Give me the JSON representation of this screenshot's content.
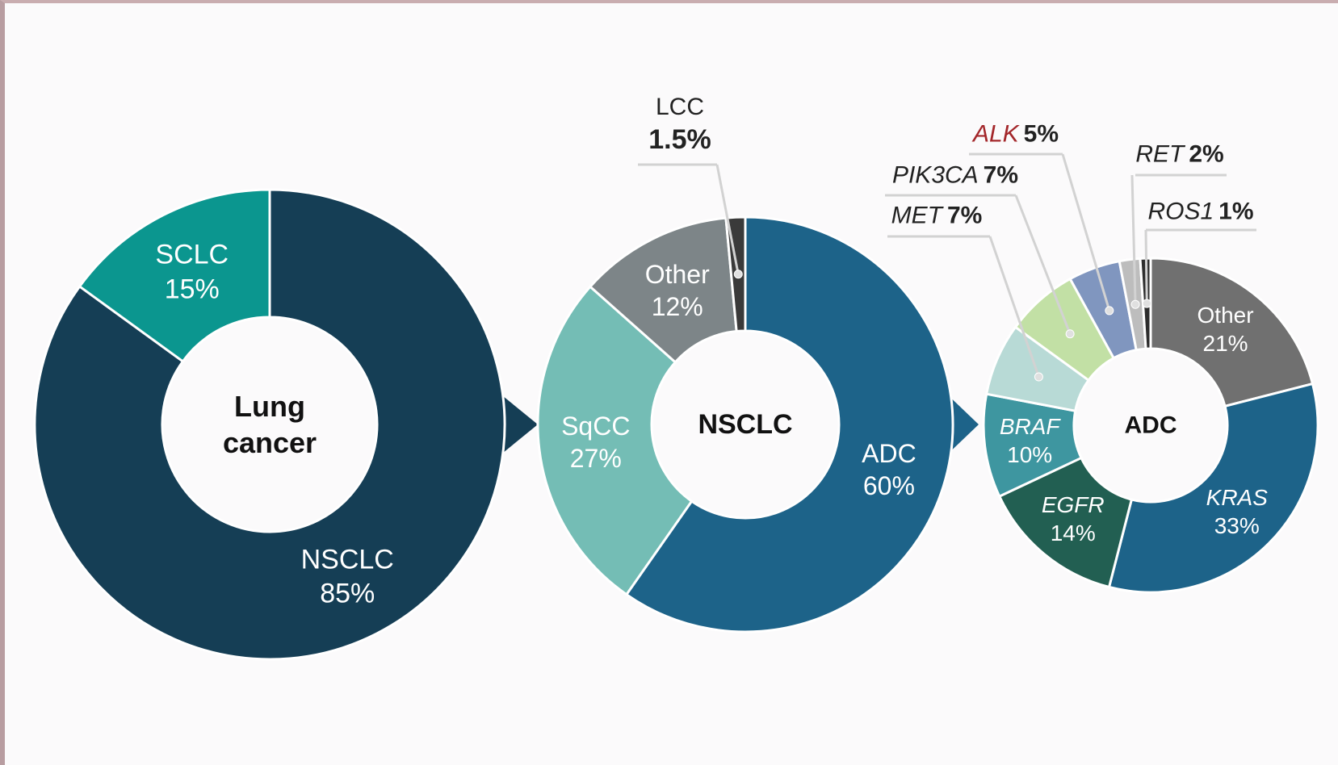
{
  "chart_data": [
    {
      "type": "pie",
      "title": "Lung cancer",
      "categories": [
        "NSCLC",
        "SCLC"
      ],
      "values": [
        85,
        15
      ],
      "value_labels": [
        "85%",
        "15%"
      ],
      "colors": [
        "#153e55",
        "#0b968f"
      ],
      "italic": [
        false,
        false
      ]
    },
    {
      "type": "pie",
      "title": "NSCLC",
      "categories": [
        "ADC",
        "SqCC",
        "Other",
        "LCC"
      ],
      "values": [
        60,
        27,
        12,
        1.5
      ],
      "value_labels": [
        "60%",
        "27%",
        "12%",
        "1.5%"
      ],
      "colors": [
        "#1d6389",
        "#74bdb5",
        "#7d8588",
        "#3a3a3a"
      ],
      "italic": [
        false,
        false,
        false,
        false
      ]
    },
    {
      "type": "pie",
      "title": "ADC",
      "categories": [
        "Other",
        "KRAS",
        "EGFR",
        "BRAF",
        "MET",
        "PIK3CA",
        "ALK",
        "RET",
        "ROS1"
      ],
      "values": [
        21,
        33,
        14,
        10,
        7,
        7,
        5,
        2,
        1
      ],
      "value_labels": [
        "21%",
        "33%",
        "14%",
        "10%",
        "7%",
        "7%",
        "5%",
        "2%",
        "1%"
      ],
      "colors": [
        "#707070",
        "#1d6389",
        "#225f52",
        "#3e96a0",
        "#b8dad6",
        "#c2e0a5",
        "#8096bf",
        "#bdbdbd",
        "#2d2d2d"
      ],
      "italic": [
        false,
        true,
        true,
        true,
        true,
        true,
        true,
        true,
        true
      ]
    }
  ]
}
